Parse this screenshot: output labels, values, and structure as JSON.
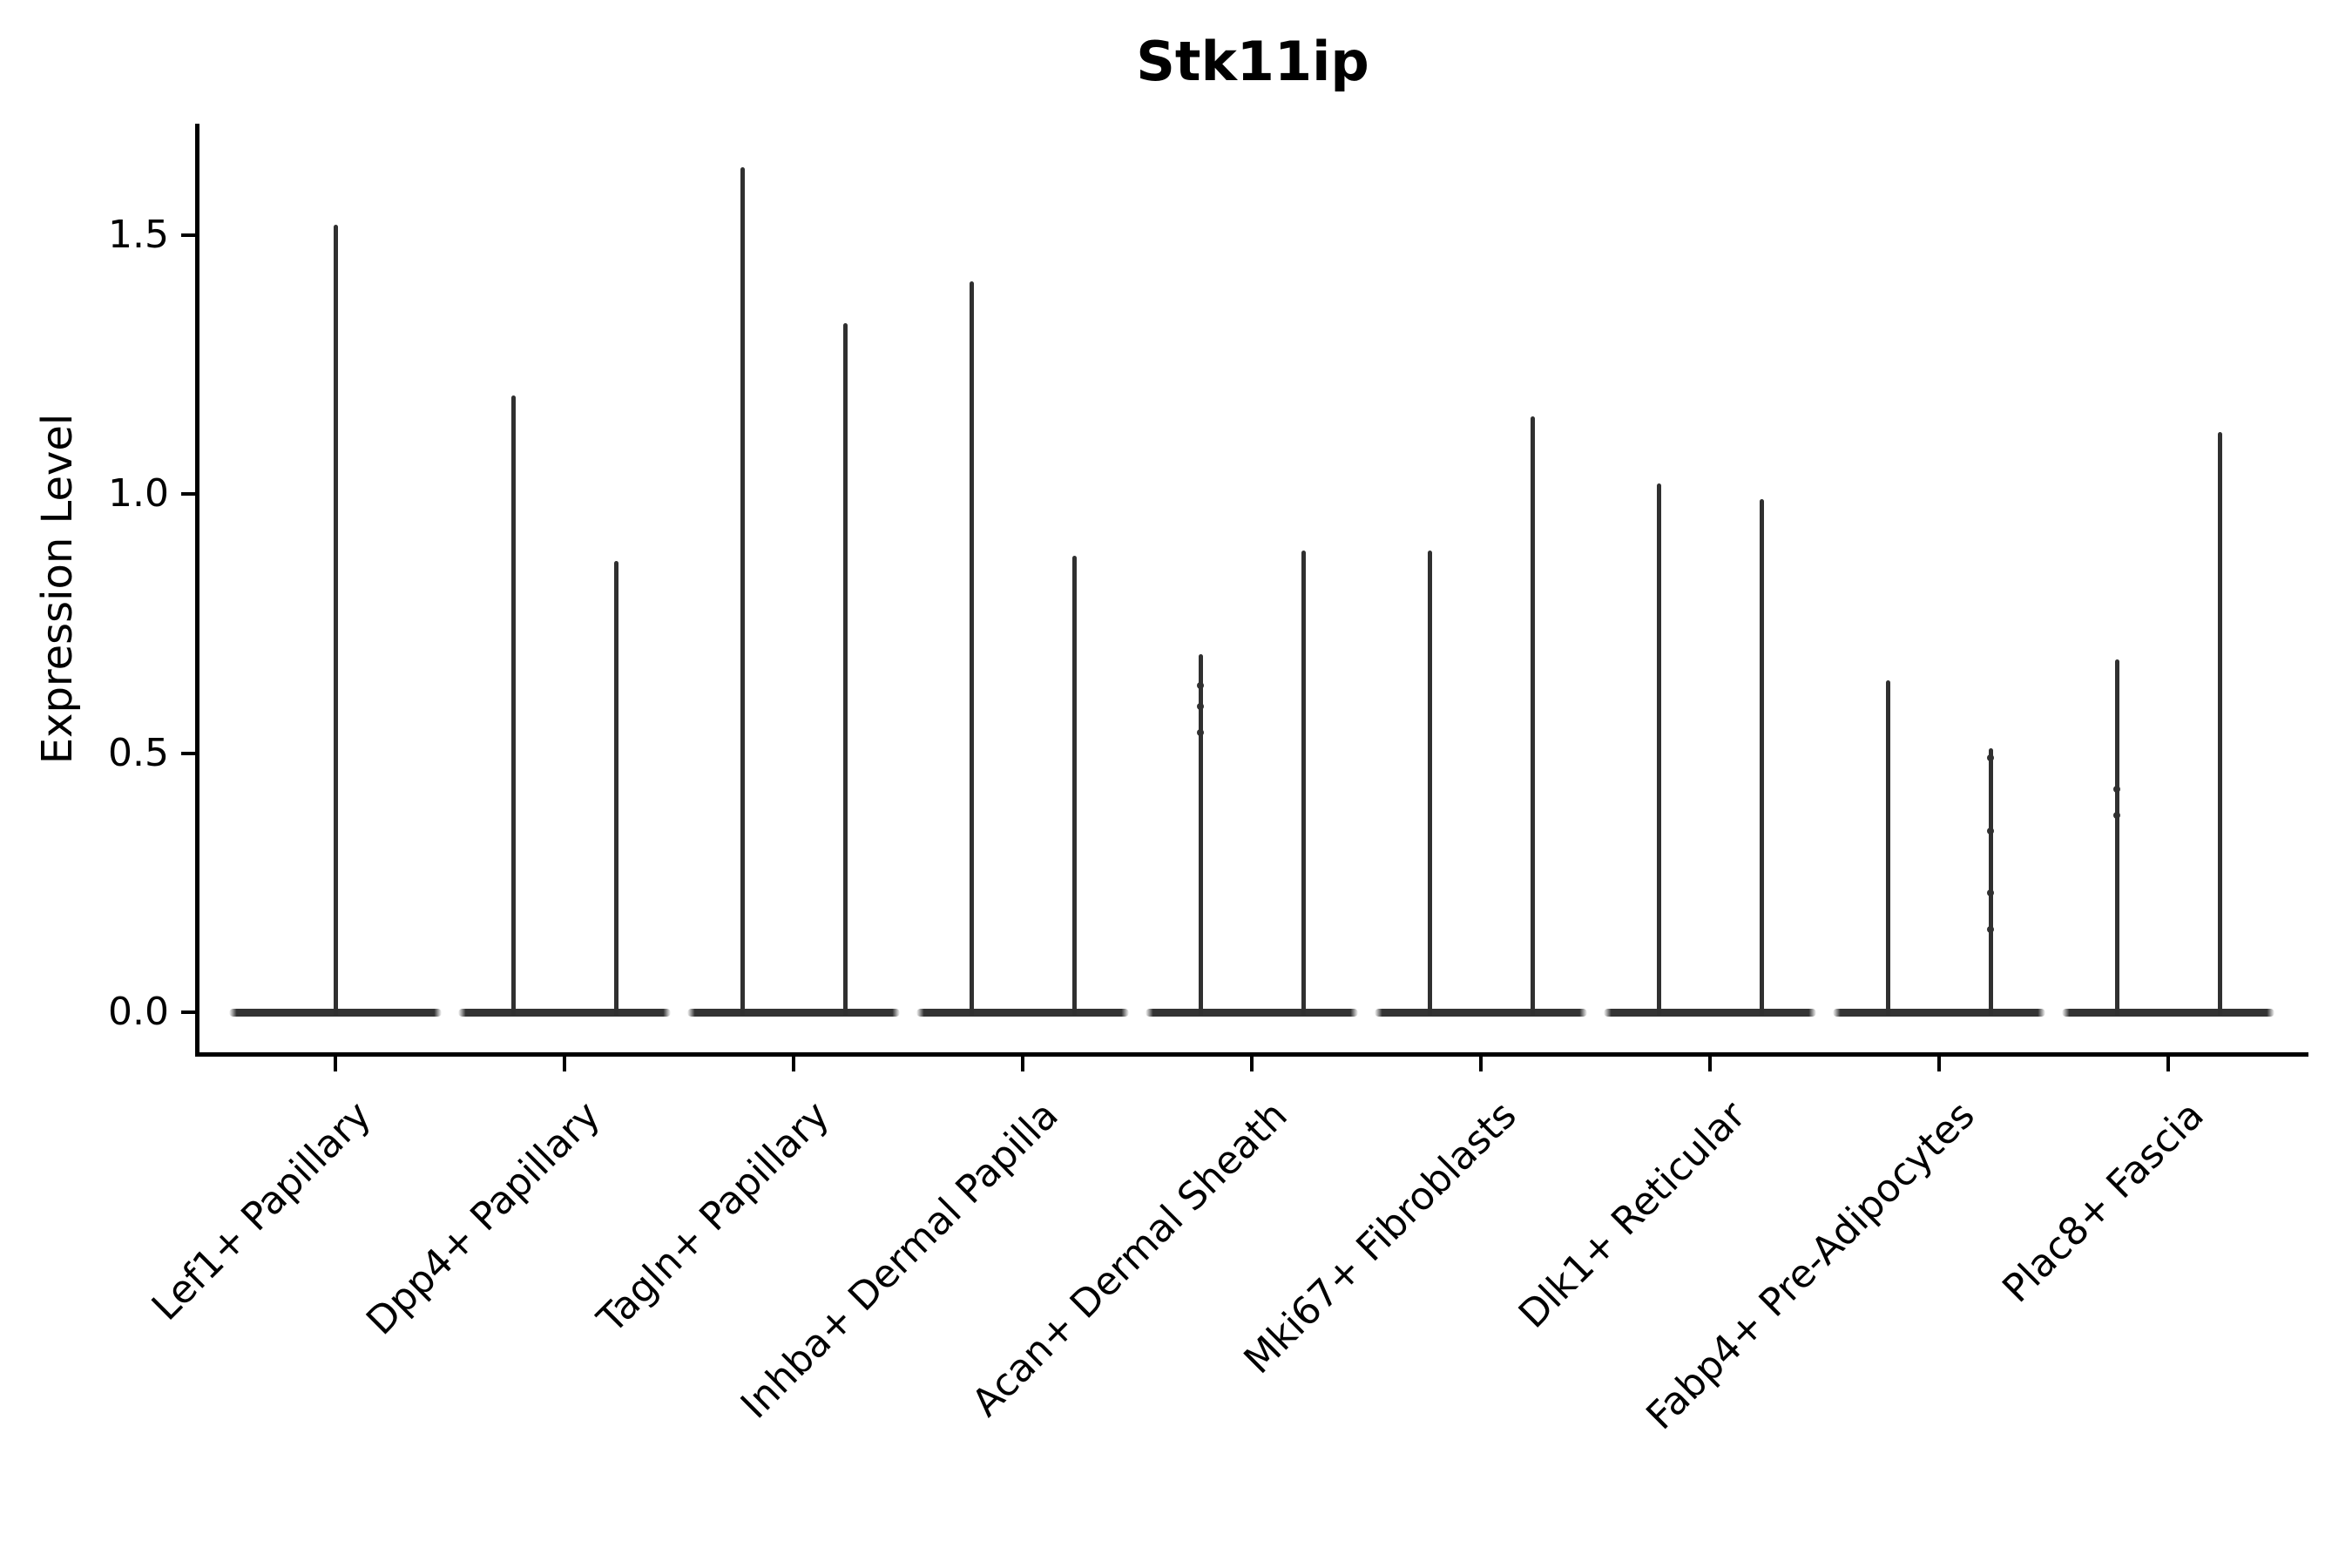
{
  "colors": {
    "ink": "#000000",
    "mark": "#333333"
  },
  "chart_data": {
    "type": "violin",
    "title": "Stk11ip",
    "xlabel": "",
    "ylabel": "Expression Level",
    "ylim": [
      -0.08,
      1.71
    ],
    "yticks": [
      0.0,
      0.5,
      1.0,
      1.5
    ],
    "grid": false,
    "legend": "none",
    "shape_note": "sparse single-cell expression: each violin is a wide flat base at 0 with a thin density spike up to its max value; first category has one centered violin, all others have two side-by-side violins",
    "categories": [
      "Lef1+ Papillary",
      "Dpp4+ Papillary",
      "Tagln+ Papillary",
      "Inhba+ Dermal Papilla",
      "Acan+ Dermal Sheath",
      "Mki67+ Fibroblasts",
      "Dlk1+ Reticular",
      "Fabp4+ Pre-Adipocytes",
      "Plac8+ Fascia"
    ],
    "violins": [
      [
        {
          "max": 1.52,
          "points": []
        }
      ],
      [
        {
          "max": 1.19,
          "points": []
        },
        {
          "max": 0.87,
          "points": []
        }
      ],
      [
        {
          "max": 1.63,
          "points": []
        },
        {
          "max": 1.33,
          "points": []
        }
      ],
      [
        {
          "max": 1.41,
          "points": []
        },
        {
          "max": 0.88,
          "points": []
        }
      ],
      [
        {
          "max": 0.69,
          "points": [
            0.63,
            0.59,
            0.54
          ]
        },
        {
          "max": 0.89,
          "points": []
        }
      ],
      [
        {
          "max": 0.89,
          "points": []
        },
        {
          "max": 1.15,
          "points": []
        }
      ],
      [
        {
          "max": 1.02,
          "points": []
        },
        {
          "max": 0.99,
          "points": []
        }
      ],
      [
        {
          "max": 0.64,
          "points": []
        },
        {
          "max": 0.51,
          "points": [
            0.49,
            0.35,
            0.23,
            0.16
          ]
        }
      ],
      [
        {
          "max": 0.68,
          "points": [
            0.43,
            0.38
          ]
        },
        {
          "max": 1.12,
          "points": []
        }
      ]
    ]
  }
}
